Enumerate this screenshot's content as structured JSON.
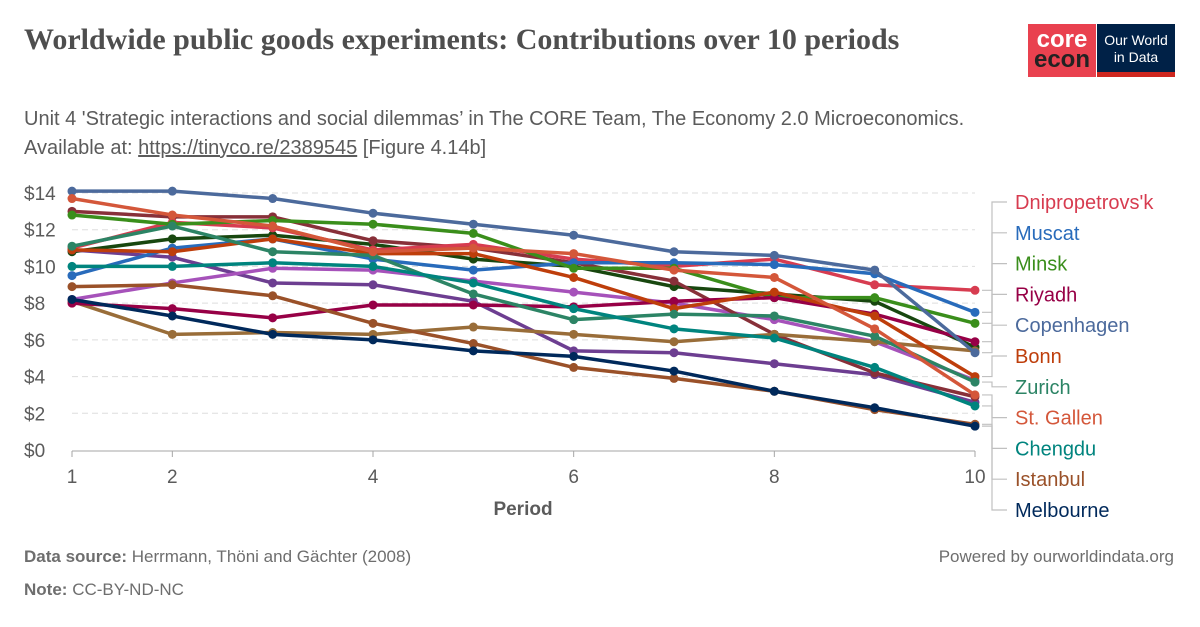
{
  "header": {
    "title": "Worldwide public goods experiments: Contributions over 10 periods",
    "subtitle_text": "Unit 4 'Strategic interactions and social dilemmas’ in The CORE Team, The Economy 2.0 Microeconomics. Available at: ",
    "subtitle_link": "https://tinyco.re/2389545",
    "subtitle_suffix": " [Figure 4.14b]",
    "logo_core": [
      "core",
      "econ"
    ],
    "logo_owid": [
      "Our World",
      "in Data"
    ]
  },
  "footer": {
    "source_label": "Data source:",
    "source": "Herrmann, Thöni and Gächter (2008)",
    "note_label": "Note:",
    "note": "CC-BY-ND-NC",
    "powered": "Powered by ourworldindata.org"
  },
  "chart_data": {
    "type": "line",
    "xlabel": "Period",
    "ylabel": "",
    "x": [
      1,
      2,
      3,
      4,
      5,
      6,
      7,
      8,
      9,
      10
    ],
    "xticks": [
      1,
      2,
      4,
      6,
      8,
      10
    ],
    "ylim": [
      0,
      14
    ],
    "yticks": [
      "$0",
      "$2",
      "$4",
      "$6",
      "$8",
      "$10",
      "$12",
      "$14"
    ],
    "grid": "horizontal dashed",
    "legend": "right, labels at line ends",
    "series": [
      {
        "name": "Dnipropetrovs'k",
        "color": "#d73c50",
        "values": [
          11.0,
          12.4,
          12.1,
          10.9,
          11.2,
          10.4,
          10.0,
          10.4,
          9.0,
          8.7
        ]
      },
      {
        "name": "Muscat",
        "color": "#286bbb",
        "values": [
          9.5,
          11.0,
          11.5,
          10.4,
          9.8,
          10.2,
          10.2,
          10.1,
          9.6,
          7.5
        ]
      },
      {
        "name": "Minsk",
        "color": "#3a8e1b",
        "values": [
          12.8,
          12.3,
          12.5,
          12.3,
          11.8,
          9.9,
          9.9,
          8.3,
          8.3,
          6.9
        ]
      },
      {
        "name": "Riyadh",
        "color": "#970046",
        "values": [
          8.0,
          7.7,
          7.2,
          7.9,
          7.9,
          7.8,
          8.1,
          8.3,
          7.4,
          5.9
        ]
      },
      {
        "name": "Copenhagen",
        "color": "#4c6a9c",
        "values": [
          14.1,
          14.1,
          13.7,
          12.9,
          12.3,
          11.7,
          10.8,
          10.6,
          9.8,
          5.3
        ]
      },
      {
        "name": "Bonn",
        "color": "#be3e0b",
        "values": [
          10.9,
          10.8,
          11.5,
          10.7,
          10.7,
          9.4,
          7.7,
          8.6,
          7.3,
          4.0
        ]
      },
      {
        "name": "Zurich",
        "color": "#2c8465",
        "values": [
          11.1,
          12.2,
          10.8,
          10.6,
          8.5,
          7.1,
          7.4,
          7.3,
          6.2,
          3.7
        ]
      },
      {
        "name": "St. Gallen",
        "color": "#d4573a",
        "values": [
          13.7,
          12.8,
          12.2,
          10.8,
          11.0,
          10.7,
          9.8,
          9.4,
          6.6,
          3.0
        ]
      },
      {
        "name": "Chengdu",
        "color": "#00847e",
        "values": [
          10.0,
          10.0,
          10.2,
          10.0,
          9.1,
          7.7,
          6.6,
          6.1,
          4.5,
          2.4
        ]
      },
      {
        "name": "Istanbul",
        "color": "#9a5129",
        "values": [
          8.9,
          9.0,
          8.4,
          6.9,
          5.8,
          4.5,
          3.9,
          3.2,
          2.2,
          1.4
        ]
      },
      {
        "name": "Melbourne",
        "color": "#00295b",
        "values": [
          8.2,
          7.3,
          6.3,
          6.0,
          5.4,
          5.1,
          4.3,
          3.2,
          2.3,
          1.3
        ]
      },
      {
        "color": "#18470f",
        "values": [
          10.8,
          11.5,
          11.7,
          11.2,
          10.4,
          10.0,
          8.9,
          8.5,
          8.1,
          5.6
        ]
      },
      {
        "color": "#6d3e91",
        "values": [
          10.9,
          10.5,
          9.1,
          9.0,
          8.1,
          5.4,
          5.3,
          4.7,
          4.1,
          2.6
        ]
      },
      {
        "color": "#a652ba",
        "values": [
          8.2,
          9.1,
          9.9,
          9.8,
          9.2,
          8.6,
          8.0,
          7.1,
          5.9,
          3.8
        ]
      },
      {
        "color": "#883039",
        "values": [
          13.0,
          12.7,
          12.7,
          11.4,
          11.0,
          10.2,
          9.2,
          6.3,
          4.2,
          2.9
        ]
      },
      {
        "color": "#996d39",
        "values": [
          8.1,
          6.3,
          6.4,
          6.3,
          6.7,
          6.3,
          5.9,
          6.3,
          5.9,
          5.4
        ]
      }
    ]
  }
}
